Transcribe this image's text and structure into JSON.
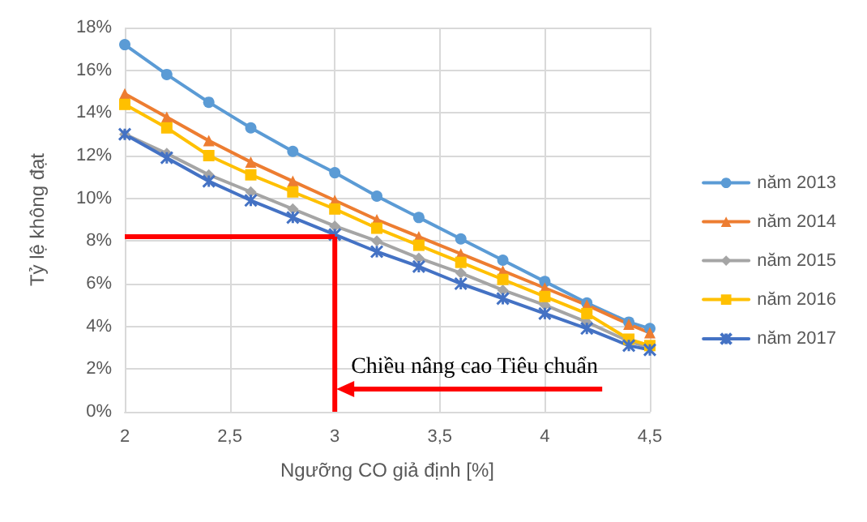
{
  "chart_data": {
    "type": "line",
    "xlabel": "Ngưỡng CO giả định [%]",
    "ylabel": "Tỷ lệ không đạt",
    "x": [
      2,
      2.2,
      2.4,
      2.6,
      2.8,
      3,
      3.2,
      3.4,
      3.6,
      3.8,
      4,
      4.2,
      4.4,
      4.5
    ],
    "series": [
      {
        "name": "năm 2013",
        "color": "#5b9bd5",
        "marker": "circle",
        "values": [
          17.2,
          15.8,
          14.5,
          13.3,
          12.2,
          11.2,
          10.1,
          9.1,
          8.1,
          7.1,
          6.1,
          5.1,
          4.2,
          3.9
        ]
      },
      {
        "name": "năm 2014",
        "color": "#ed7d31",
        "marker": "triangle",
        "values": [
          14.9,
          13.8,
          12.7,
          11.7,
          10.8,
          9.9,
          9.0,
          8.2,
          7.4,
          6.6,
          5.8,
          5.0,
          4.1,
          3.7
        ]
      },
      {
        "name": "năm 2015",
        "color": "#a5a5a5",
        "marker": "diamond",
        "values": [
          13.0,
          12.1,
          11.1,
          10.3,
          9.5,
          8.7,
          8.0,
          7.2,
          6.5,
          5.7,
          5.0,
          4.2,
          3.3,
          3.0
        ]
      },
      {
        "name": "năm 2016",
        "color": "#ffc000",
        "marker": "square",
        "values": [
          14.4,
          13.3,
          12.0,
          11.1,
          10.3,
          9.5,
          8.6,
          7.8,
          7.0,
          6.2,
          5.4,
          4.6,
          3.4,
          3.1
        ]
      },
      {
        "name": "năm 2017",
        "color": "#4472c4",
        "marker": "cross",
        "values": [
          13.0,
          11.9,
          10.8,
          9.9,
          9.1,
          8.3,
          7.5,
          6.8,
          6.0,
          5.3,
          4.6,
          3.9,
          3.1,
          2.9
        ]
      }
    ],
    "xlim": [
      2,
      4.5
    ],
    "xticks": [
      2,
      {
        "value": 2.5,
        "label": "2,5"
      },
      3,
      {
        "value": 3.5,
        "label": "3,5"
      },
      4,
      {
        "value": 4.5,
        "label": "4,5"
      }
    ],
    "ylim": [
      0,
      18
    ],
    "yticks": [
      {
        "value": 0,
        "label": "0%"
      },
      {
        "value": 2,
        "label": "2%"
      },
      {
        "value": 4,
        "label": "4%"
      },
      {
        "value": 6,
        "label": "6%"
      },
      {
        "value": 8,
        "label": "8%"
      },
      {
        "value": 10,
        "label": "10%"
      },
      {
        "value": 12,
        "label": "12%"
      },
      {
        "value": 14,
        "label": "14%"
      },
      {
        "value": 16,
        "label": "16%"
      },
      {
        "value": 18,
        "label": "18%"
      }
    ],
    "ref_lines": [
      {
        "axis": "y",
        "value": 8.2,
        "color": "#ff0000"
      },
      {
        "axis": "x",
        "value": 3,
        "color": "#ff0000"
      }
    ],
    "grid": true,
    "legend": "right",
    "line_style": "solid",
    "annotations": [
      "Chiều nâng cao Tiêu chuẩn"
    ]
  }
}
